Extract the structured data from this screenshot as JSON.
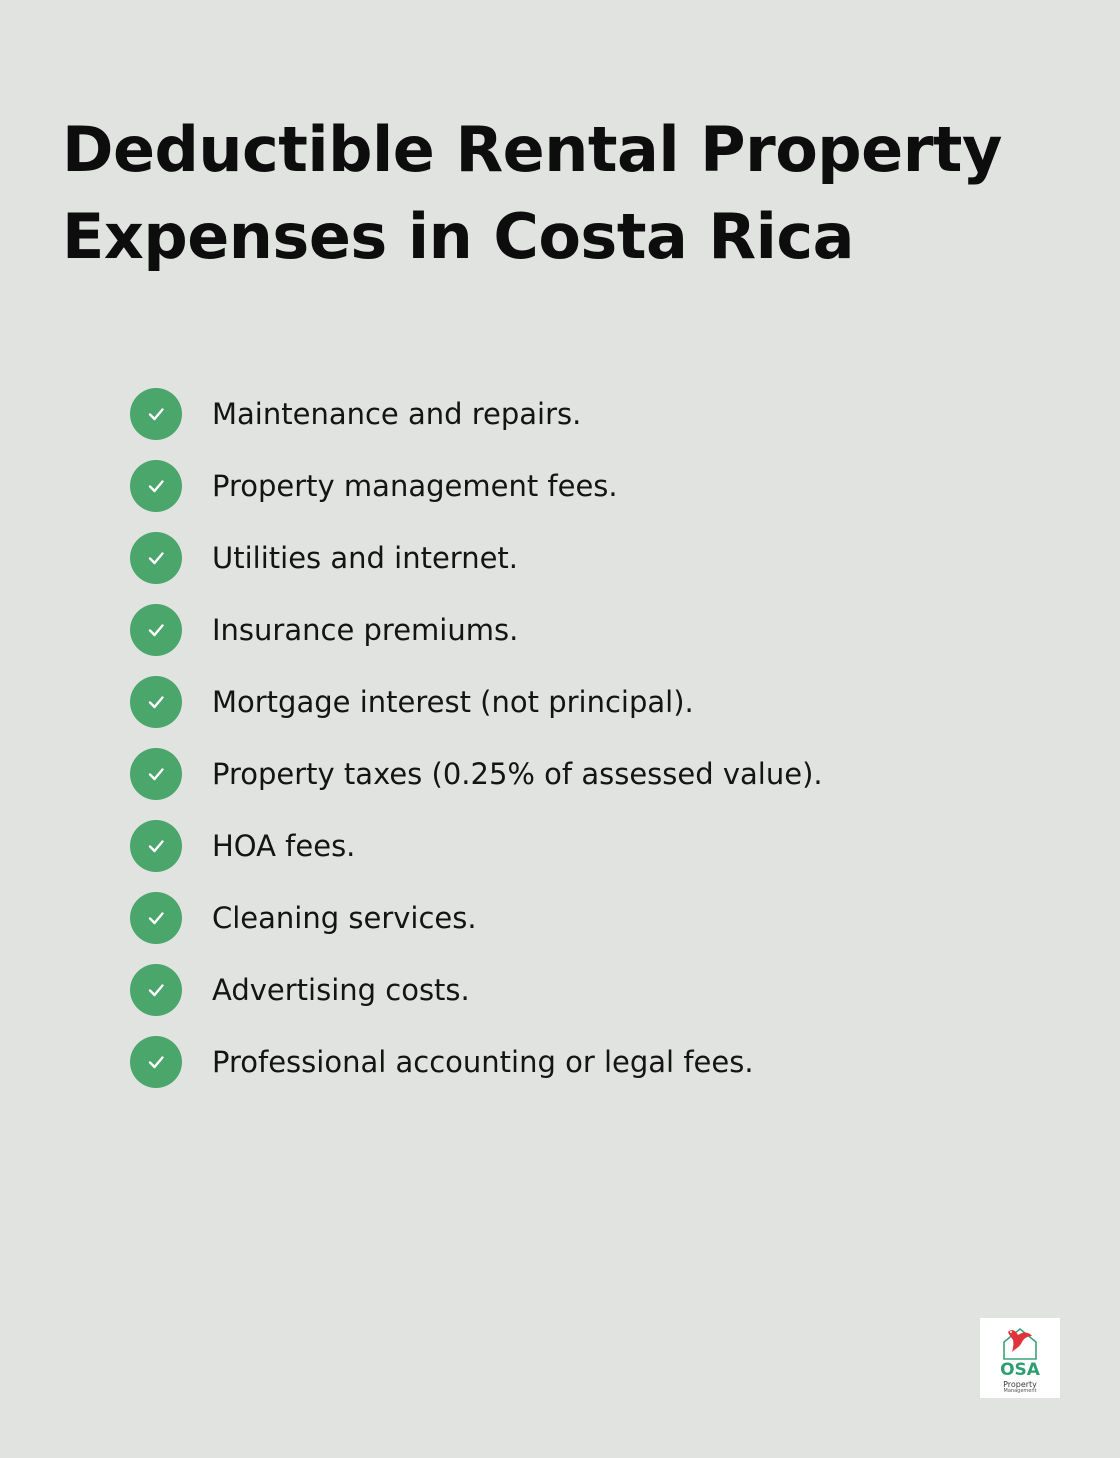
{
  "title": "Deductible Rental Property Expenses in Costa Rica",
  "items": [
    {
      "label": "Maintenance and repairs.",
      "icon": "check-icon"
    },
    {
      "label": "Property management fees.",
      "icon": "check-icon"
    },
    {
      "label": "Utilities and internet.",
      "icon": "check-icon"
    },
    {
      "label": "Insurance premiums.",
      "icon": "check-icon"
    },
    {
      "label": "Mortgage interest (not principal).",
      "icon": "check-icon"
    },
    {
      "label": "Property taxes (0.25% of assessed value).",
      "icon": "check-icon"
    },
    {
      "label": "HOA fees.",
      "icon": "check-icon"
    },
    {
      "label": "Cleaning services.",
      "icon": "check-icon"
    },
    {
      "label": "Advertising costs.",
      "icon": "check-icon"
    },
    {
      "label": "Professional accounting or legal fees.",
      "icon": "check-icon"
    }
  ],
  "logo": {
    "name": "OSA",
    "line1": "Property",
    "line2": "Management"
  },
  "colors": {
    "background": "#e1e3e1",
    "check": "#4aa66a",
    "text": "#141414",
    "logo_green": "#2e9e72",
    "logo_red": "#e0343c"
  }
}
